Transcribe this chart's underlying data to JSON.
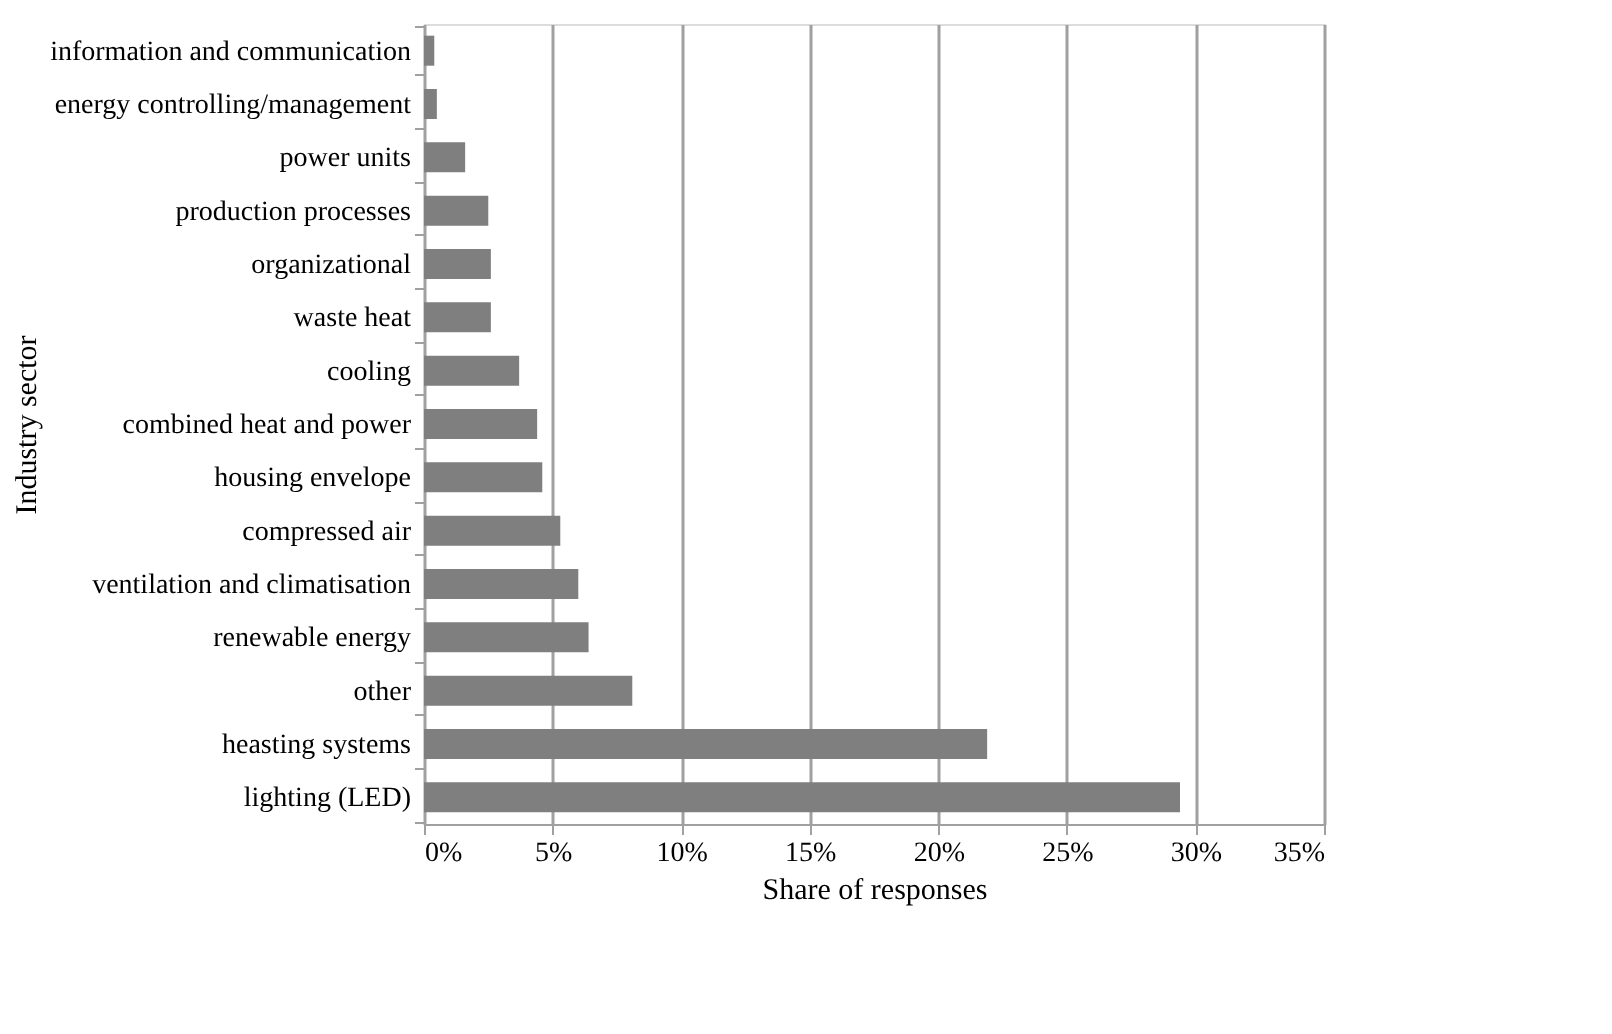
{
  "chart_data": {
    "type": "bar",
    "orientation": "horizontal",
    "xlabel": "Share of responses",
    "ylabel": "Industry sector",
    "categories": [
      "information and communication",
      "energy controlling/management",
      "power units",
      "production processes",
      "organizational",
      "waste heat",
      "cooling",
      "combined heat and power",
      "housing envelope",
      "compressed air",
      "ventilation and climatisation",
      "renewable energy",
      "other",
      "heasting systems",
      "lighting (LED)"
    ],
    "values": [
      0.4,
      0.5,
      1.6,
      2.5,
      2.6,
      2.6,
      3.7,
      4.4,
      4.6,
      5.3,
      6.0,
      6.4,
      8.1,
      21.9,
      29.4
    ],
    "color": "#7f7f7f",
    "xlim": [
      0,
      35
    ],
    "xticks": [
      {
        "value": 0,
        "label": "0%"
      },
      {
        "value": 5,
        "label": "5%"
      },
      {
        "value": 10,
        "label": "10%"
      },
      {
        "value": 15,
        "label": "15%"
      },
      {
        "value": 20,
        "label": "20%"
      },
      {
        "value": 25,
        "label": "25%"
      },
      {
        "value": 30,
        "label": "30%"
      },
      {
        "value": 35,
        "label": "35%"
      }
    ],
    "grid": "x"
  }
}
